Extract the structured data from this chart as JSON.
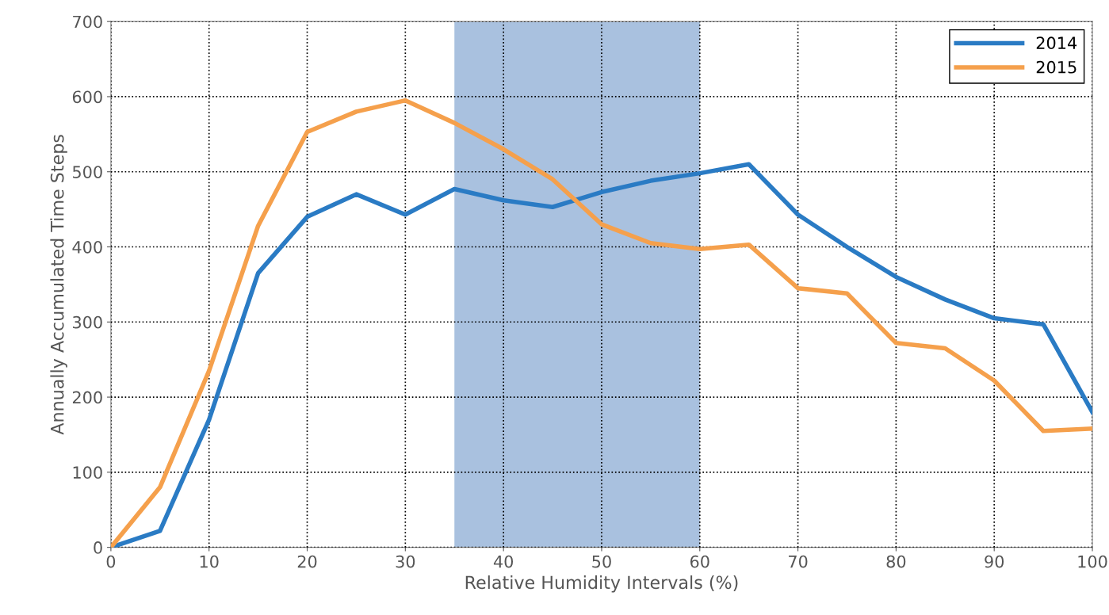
{
  "chart_data": {
    "type": "line",
    "xlabel": "Relative Humidity Intervals (%)",
    "ylabel": "Annually Accumulated Time Steps",
    "x": [
      0,
      5,
      10,
      15,
      20,
      25,
      30,
      35,
      40,
      45,
      50,
      55,
      60,
      65,
      70,
      75,
      80,
      85,
      90,
      95,
      100
    ],
    "series": [
      {
        "name": "2014",
        "color": "#2a7bc4",
        "values": [
          0,
          22,
          170,
          365,
          440,
          470,
          443,
          477,
          462,
          453,
          473,
          488,
          498,
          510,
          443,
          400,
          360,
          330,
          305,
          297,
          180
        ]
      },
      {
        "name": "2015",
        "color": "#f5a04c",
        "values": [
          0,
          80,
          235,
          428,
          553,
          580,
          595,
          565,
          530,
          490,
          430,
          405,
          397,
          403,
          345,
          338,
          272,
          265,
          222,
          155,
          158
        ]
      }
    ],
    "bands": [
      {
        "axis": "x",
        "from": 35,
        "to": 60,
        "color": "#a9c1df"
      }
    ],
    "xlim": [
      0,
      100
    ],
    "xticks": [
      0,
      10,
      20,
      30,
      40,
      50,
      60,
      70,
      80,
      90,
      100
    ],
    "ylim": [
      0,
      700
    ],
    "yticks": [
      0,
      100,
      200,
      300,
      400,
      500,
      600,
      700
    ],
    "grid": true,
    "legend": "top right",
    "marker": "none",
    "line_style": "solid"
  }
}
